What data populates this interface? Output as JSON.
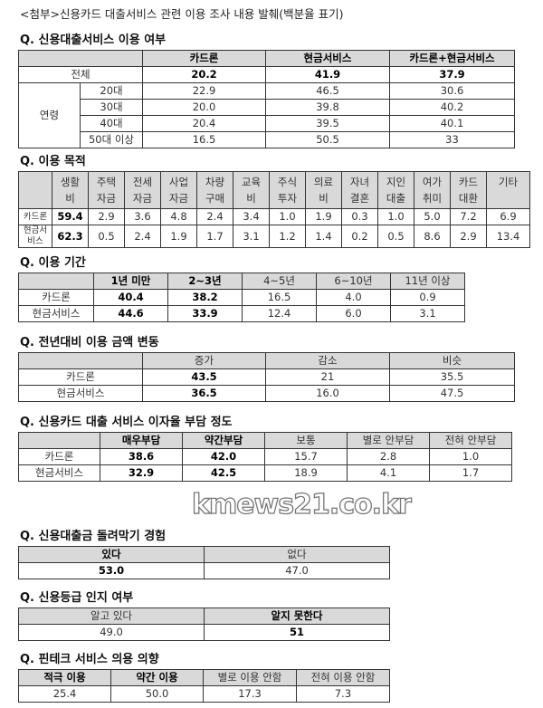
{
  "title": "<첨부>신용카드 대출서비스 관련 이용 조사 내용 발췌(백분율 표기)",
  "sections": [
    {
      "question": "Q. 신용대출서비스 이용 여부",
      "headers": [
        "",
        "카드론",
        "현금서비스",
        "카드론+현금서비스"
      ],
      "total": {
        "label": "전체",
        "values": [
          "20.2",
          "41.9",
          "37.9"
        ]
      },
      "group_label": "연령",
      "rows": [
        {
          "label": "20대",
          "values": [
            "22.9",
            "46.5",
            "30.6"
          ]
        },
        {
          "label": "30대",
          "values": [
            "20.0",
            "39.8",
            "40.2"
          ]
        },
        {
          "label": "40대",
          "values": [
            "20.4",
            "39.5",
            "40.1"
          ]
        },
        {
          "label": "50대 이상",
          "values": [
            "16.5",
            "50.5",
            "33"
          ]
        }
      ]
    },
    {
      "question": "Q. 이용 목적",
      "headers": [
        "",
        "생활비",
        "주택자금",
        "전세자금",
        "사업자금",
        "차량구매",
        "교육비",
        "주식투자",
        "의료비",
        "자녀결혼",
        "지인대출",
        "여가취미",
        "카드대환",
        "기타"
      ],
      "rows": [
        {
          "label": "카드론",
          "values": [
            "59.4",
            "2.9",
            "3.6",
            "4.8",
            "2.4",
            "3.4",
            "1.0",
            "1.9",
            "0.3",
            "1.0",
            "5.0",
            "7.2",
            "6.9"
          ]
        },
        {
          "label": "현금서비스",
          "values": [
            "62.3",
            "0.5",
            "2.4",
            "1.9",
            "1.7",
            "3.1",
            "1.2",
            "1.4",
            "0.2",
            "0.5",
            "8.6",
            "2.9",
            "13.4"
          ]
        }
      ]
    },
    {
      "question": "Q. 이용 기간",
      "headers": [
        "",
        "1년 미만",
        "2~3년",
        "4~5년",
        "6~10년",
        "11년 이상"
      ],
      "rows": [
        {
          "label": "카드론",
          "values": [
            "40.4",
            "38.2",
            "16.5",
            "4.0",
            "0.9"
          ]
        },
        {
          "label": "현금서비스",
          "values": [
            "44.6",
            "33.9",
            "12.4",
            "6.0",
            "3.1"
          ]
        }
      ]
    },
    {
      "question": "Q. 전년대비 이용 금액 변동",
      "headers": [
        "",
        "증가",
        "감소",
        "비슷"
      ],
      "rows": [
        {
          "label": "카드론",
          "values": [
            "43.5",
            "21",
            "35.5"
          ]
        },
        {
          "label": "현금서비스",
          "values": [
            "36.5",
            "16.0",
            "47.5"
          ]
        }
      ]
    },
    {
      "question": "Q. 신용카드 대출 서비스 이자율 부담 정도",
      "headers": [
        "",
        "매우부담",
        "약간부담",
        "보통",
        "별로 안부담",
        "전혀 안부담"
      ],
      "rows": [
        {
          "label": "카드론",
          "values": [
            "38.6",
            "42.0",
            "15.7",
            "2.8",
            "1.0"
          ]
        },
        {
          "label": "현금서비스",
          "values": [
            "32.9",
            "42.5",
            "18.9",
            "4.1",
            "1.7"
          ]
        }
      ]
    },
    {
      "question": "Q. 신용대출금 돌려막기 경험",
      "headers": [
        "있다",
        "없다"
      ],
      "rows": [
        {
          "values": [
            "53.0",
            "47.0"
          ]
        }
      ]
    },
    {
      "question": "Q. 신용등급 인지 여부",
      "headers": [
        "알고 있다",
        "알지 못한다"
      ],
      "rows": [
        {
          "values": [
            "49.0",
            "51"
          ]
        }
      ]
    },
    {
      "question": "Q. 핀테크 서비스 의용 의향",
      "headers": [
        "적극 이용",
        "약간 이용",
        "별로 이용 안함",
        "전혀 이용 안함"
      ],
      "rows": [
        {
          "values": [
            "25.4",
            "50.0",
            "17.3",
            "7.3"
          ]
        }
      ]
    }
  ],
  "watermark": "kmews21.co.kr",
  "colors": {
    "header_bg": "#d9d9d9",
    "border": "#333333"
  }
}
